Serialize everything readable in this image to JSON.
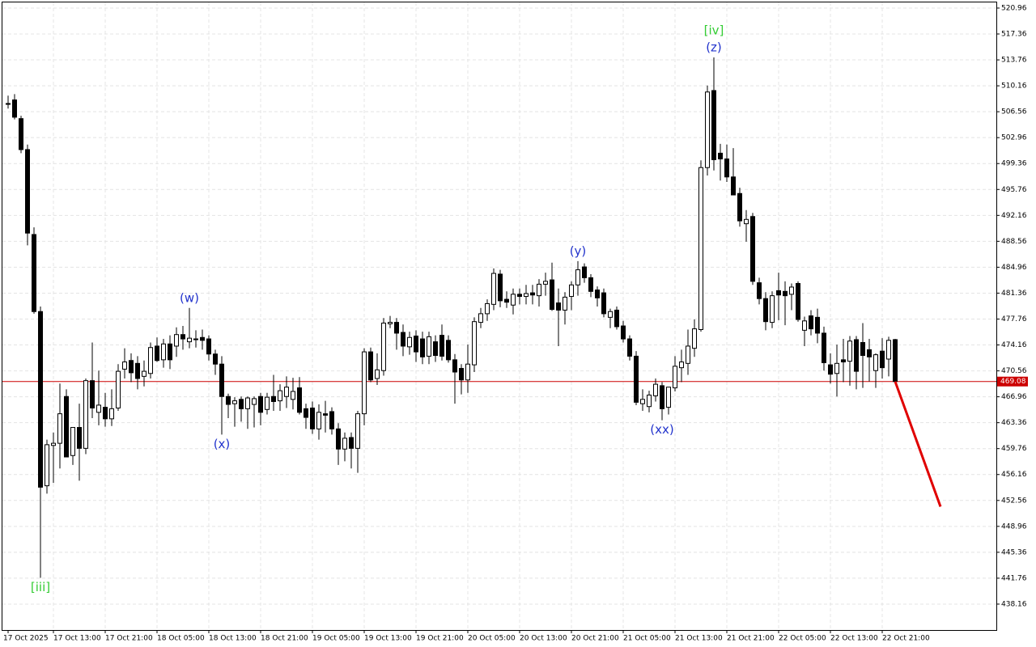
{
  "chart_data": {
    "type": "candlestick",
    "ylim": [
      434.56,
      522.08
    ],
    "yticks": [
      520.96,
      517.36,
      513.76,
      510.16,
      506.56,
      502.96,
      499.36,
      495.76,
      492.16,
      488.56,
      484.96,
      481.36,
      477.76,
      474.16,
      470.56,
      466.96,
      463.36,
      459.76,
      456.16,
      452.56,
      448.96,
      445.36,
      441.76,
      438.16
    ],
    "xticks": [
      {
        "value": 0,
        "label": "17 Oct 2025"
      },
      {
        "value": 7,
        "label": "17 Oct 13:00"
      },
      {
        "value": 15,
        "label": "17 Oct 21:00"
      },
      {
        "value": 23,
        "label": "18 Oct 05:00"
      },
      {
        "value": 31,
        "label": "18 Oct 13:00"
      },
      {
        "value": 39,
        "label": "18 Oct 21:00"
      },
      {
        "value": 47,
        "label": "19 Oct 05:00"
      },
      {
        "value": 55,
        "label": "19 Oct 13:00"
      },
      {
        "value": 63,
        "label": "19 Oct 21:00"
      },
      {
        "value": 71,
        "label": "20 Oct 05:00"
      },
      {
        "value": 79,
        "label": "20 Oct 13:00"
      },
      {
        "value": 87,
        "label": "20 Oct 21:00"
      },
      {
        "value": 95,
        "label": "21 Oct 05:00"
      },
      {
        "value": 103,
        "label": "21 Oct 13:00"
      },
      {
        "value": 111,
        "label": "21 Oct 21:00"
      },
      {
        "value": 119,
        "label": "22 Oct 05:00"
      },
      {
        "value": 127,
        "label": "22 Oct 13:00"
      },
      {
        "value": 135,
        "label": "22 Oct 21:00"
      }
    ],
    "grid": true,
    "up_color": "#ffffff",
    "down_color": "#000000",
    "candles": [
      [
        507.7,
        508.8,
        507,
        507.6
      ],
      [
        508.2,
        509,
        505.5,
        505.8
      ],
      [
        505.6,
        506,
        500.8,
        501.3
      ],
      [
        501.3,
        502,
        488,
        489.7
      ],
      [
        489.5,
        490.5,
        478.5,
        478.8
      ],
      [
        478.8,
        479.5,
        441.8,
        454.4
      ],
      [
        454.6,
        461,
        453.5,
        460.3
      ],
      [
        460.2,
        462,
        455,
        460.5
      ],
      [
        460.5,
        468.8,
        457,
        464.6
      ],
      [
        467,
        468,
        458.6,
        458.6
      ],
      [
        458.8,
        462,
        457.5,
        462.7
      ],
      [
        462.7,
        466,
        455.3,
        459.8
      ],
      [
        459.8,
        469.5,
        459,
        469.2
      ],
      [
        469.2,
        474.5,
        464,
        465.4
      ],
      [
        464.8,
        470.6,
        463,
        465.8
      ],
      [
        465.5,
        467.5,
        462.8,
        463.9
      ],
      [
        463.9,
        468,
        462.9,
        465.3
      ],
      [
        465.4,
        471.5,
        465,
        470.5
      ],
      [
        470.8,
        473.7,
        469.5,
        471.8
      ],
      [
        472,
        473,
        469,
        470.3
      ],
      [
        471.6,
        472.6,
        468,
        469.5
      ],
      [
        469.8,
        472,
        468.4,
        470.5
      ],
      [
        470.2,
        474.5,
        469.5,
        473.8
      ],
      [
        474,
        475.2,
        471.8,
        472
      ],
      [
        472.1,
        475,
        471,
        474.3
      ],
      [
        474.3,
        475.5,
        470.8,
        472.1
      ],
      [
        474,
        476.6,
        472.5,
        475.6
      ],
      [
        475.6,
        476.8,
        473.5,
        475
      ],
      [
        474.6,
        479.3,
        473.7,
        475.1
      ],
      [
        475,
        476.2,
        473.8,
        474.9
      ],
      [
        475.2,
        476.3,
        473.5,
        474.8
      ],
      [
        475,
        475.5,
        472,
        472.9
      ],
      [
        472.9,
        473.5,
        470,
        471.5
      ],
      [
        471.5,
        472.6,
        461.7,
        467
      ],
      [
        467,
        467.4,
        464,
        465.9
      ],
      [
        466,
        466.9,
        462.8,
        466.4
      ],
      [
        466.6,
        467,
        463.5,
        465.3
      ],
      [
        465.3,
        467,
        462.5,
        466.8
      ],
      [
        465.9,
        467,
        462.7,
        466.7
      ],
      [
        467,
        467.5,
        463,
        464.8
      ],
      [
        465.2,
        467.5,
        464.5,
        466.9
      ],
      [
        467,
        470,
        465,
        466.3
      ],
      [
        466.4,
        468.7,
        465,
        467.8
      ],
      [
        467,
        469.8,
        465.4,
        468.3
      ],
      [
        466.6,
        469.6,
        465.2,
        467.7
      ],
      [
        468.2,
        469.7,
        464.5,
        464.8
      ],
      [
        465.3,
        466,
        462.5,
        464.1
      ],
      [
        465.4,
        466.3,
        461.8,
        462.5
      ],
      [
        462.5,
        465.9,
        461,
        464.8
      ],
      [
        464.6,
        466.4,
        462,
        464.4
      ],
      [
        464.9,
        465.5,
        461.7,
        462.5
      ],
      [
        462.5,
        463.3,
        457.5,
        459.7
      ],
      [
        459.7,
        462,
        458,
        461.2
      ],
      [
        461.3,
        462,
        457,
        459.8
      ],
      [
        459.8,
        465,
        456.4,
        464.6
      ],
      [
        464.6,
        473.7,
        463,
        473.2
      ],
      [
        473.2,
        473.8,
        469,
        469.3
      ],
      [
        469.5,
        473,
        468.6,
        470.7
      ],
      [
        470.6,
        477.9,
        469.9,
        477.2
      ],
      [
        477.1,
        478.2,
        476.5,
        477.3
      ],
      [
        477.3,
        477.9,
        473.5,
        475.8
      ],
      [
        475.9,
        477,
        472.6,
        474
      ],
      [
        473.9,
        476,
        472.8,
        475.2
      ],
      [
        475.4,
        476.2,
        471.8,
        473.2
      ],
      [
        475,
        476,
        471.5,
        472.5
      ],
      [
        472.6,
        476,
        471.5,
        475.3
      ],
      [
        474.6,
        475.5,
        471.8,
        472.7
      ],
      [
        475.5,
        477,
        472,
        472.6
      ],
      [
        474.8,
        475.5,
        471.7,
        472.1
      ],
      [
        472.1,
        472.9,
        466,
        470.4
      ],
      [
        470.9,
        471.5,
        467.3,
        469.3
      ],
      [
        469.3,
        474.2,
        467.5,
        471.5
      ],
      [
        471.4,
        478,
        470.4,
        477.4
      ],
      [
        477.3,
        479.3,
        476.5,
        478.5
      ],
      [
        478.5,
        480.5,
        477.5,
        479.9
      ],
      [
        479.8,
        484.8,
        479,
        484.1
      ],
      [
        484,
        484.6,
        479.4,
        480.3
      ],
      [
        480.5,
        481.6,
        479.3,
        480.1
      ],
      [
        479.7,
        482,
        478.4,
        481.2
      ],
      [
        481.2,
        482,
        479.8,
        480.9
      ],
      [
        480.9,
        482.5,
        479.8,
        481.3
      ],
      [
        481.4,
        482.5,
        479.8,
        481.1
      ],
      [
        481,
        483.3,
        479.5,
        482.6
      ],
      [
        482.6,
        484.2,
        481,
        483
      ],
      [
        483.2,
        485.6,
        478.9,
        479.1
      ],
      [
        480,
        482,
        474,
        479
      ],
      [
        479,
        481.5,
        477,
        480.8
      ],
      [
        480.9,
        483,
        479,
        482.5
      ],
      [
        482.5,
        485.8,
        481,
        484.6
      ],
      [
        485,
        485.5,
        482.8,
        483.5
      ],
      [
        483.5,
        484,
        480.8,
        481.6
      ],
      [
        481.8,
        482.3,
        479.5,
        480.7
      ],
      [
        481.4,
        482,
        478,
        478.5
      ],
      [
        478,
        479.2,
        476.5,
        478.8
      ],
      [
        479,
        479.5,
        476.3,
        476.7
      ],
      [
        476.8,
        477.5,
        474.5,
        475
      ],
      [
        475,
        475.5,
        472,
        472.6
      ],
      [
        472.6,
        473.3,
        465.8,
        466.2
      ],
      [
        466,
        468,
        465,
        466.6
      ],
      [
        465.6,
        467.8,
        464.8,
        467.2
      ],
      [
        467.1,
        469.5,
        466.3,
        468.7
      ],
      [
        468.5,
        469,
        463.7,
        465.3
      ],
      [
        465.5,
        468,
        464.5,
        468.3
      ],
      [
        468.2,
        472.6,
        467.7,
        471.2
      ],
      [
        471,
        473.5,
        469,
        471.8
      ],
      [
        471.6,
        476.3,
        470,
        474
      ],
      [
        473.7,
        477.7,
        472.5,
        476.4
      ],
      [
        476.3,
        499.8,
        476,
        498.8
      ],
      [
        498.8,
        510.2,
        497.7,
        509.3
      ],
      [
        509.5,
        514.1,
        498.4,
        499.9
      ],
      [
        500.8,
        502.1,
        497,
        500
      ],
      [
        500,
        502,
        496.8,
        497.5
      ],
      [
        497.5,
        501.5,
        495,
        495
      ],
      [
        495.2,
        496,
        490.6,
        491.4
      ],
      [
        491,
        492.9,
        488.5,
        491.6
      ],
      [
        492,
        492.5,
        482.5,
        483
      ],
      [
        482.8,
        483.5,
        479.8,
        480.6
      ],
      [
        480.6,
        481.5,
        476.2,
        477.4
      ],
      [
        477.3,
        481.6,
        476.5,
        481
      ],
      [
        481.7,
        484.2,
        477.6,
        481.1
      ],
      [
        481.6,
        483,
        476.9,
        481
      ],
      [
        481.2,
        482.7,
        479,
        482.2
      ],
      [
        482.7,
        483,
        477.4,
        477.7
      ],
      [
        476.2,
        478.1,
        474,
        477.5
      ],
      [
        478.2,
        479,
        475.5,
        476.4
      ],
      [
        478,
        479.2,
        474.4,
        475.8
      ],
      [
        475.8,
        476.7,
        470.6,
        471.7
      ],
      [
        471.4,
        473,
        468.8,
        470.1
      ],
      [
        470.2,
        474.2,
        467,
        471.6
      ],
      [
        472.1,
        475,
        469,
        471.8
      ],
      [
        471.9,
        475.4,
        468.5,
        474.7
      ],
      [
        474.9,
        475.4,
        468,
        470.5
      ],
      [
        474.5,
        477.2,
        468.2,
        472.7
      ],
      [
        473.5,
        475,
        469.1,
        472.5
      ],
      [
        470.6,
        473,
        468.2,
        472.8
      ],
      [
        473.3,
        475.1,
        469.5,
        471
      ],
      [
        472.2,
        475.3,
        469.8,
        474.8
      ],
      [
        474.9,
        475,
        469,
        469.08
      ]
    ],
    "price_line": {
      "value": 469.08,
      "color": "#cc0000"
    },
    "forecast": {
      "x": [
        137,
        144
      ],
      "values": [
        469.08,
        451.7
      ],
      "color": "#e00000"
    },
    "annotations": [
      {
        "text": "[iii]",
        "candle": 5,
        "side": "below",
        "color": "#33cc33"
      },
      {
        "text": "(w)",
        "candle": 28,
        "side": "above",
        "color": "#2233cc"
      },
      {
        "text": "(x)",
        "candle": 33,
        "side": "below",
        "color": "#2233cc"
      },
      {
        "text": "(y)",
        "candle": 88,
        "side": "above",
        "color": "#2233cc"
      },
      {
        "text": "(xx)",
        "candle": 101,
        "side": "below",
        "color": "#2233cc"
      },
      {
        "text": "(z)",
        "candle": 109,
        "side": "above",
        "color": "#2233cc"
      },
      {
        "text": "[iv]",
        "candle": 109,
        "side": "above",
        "color": "#33cc33"
      }
    ]
  }
}
